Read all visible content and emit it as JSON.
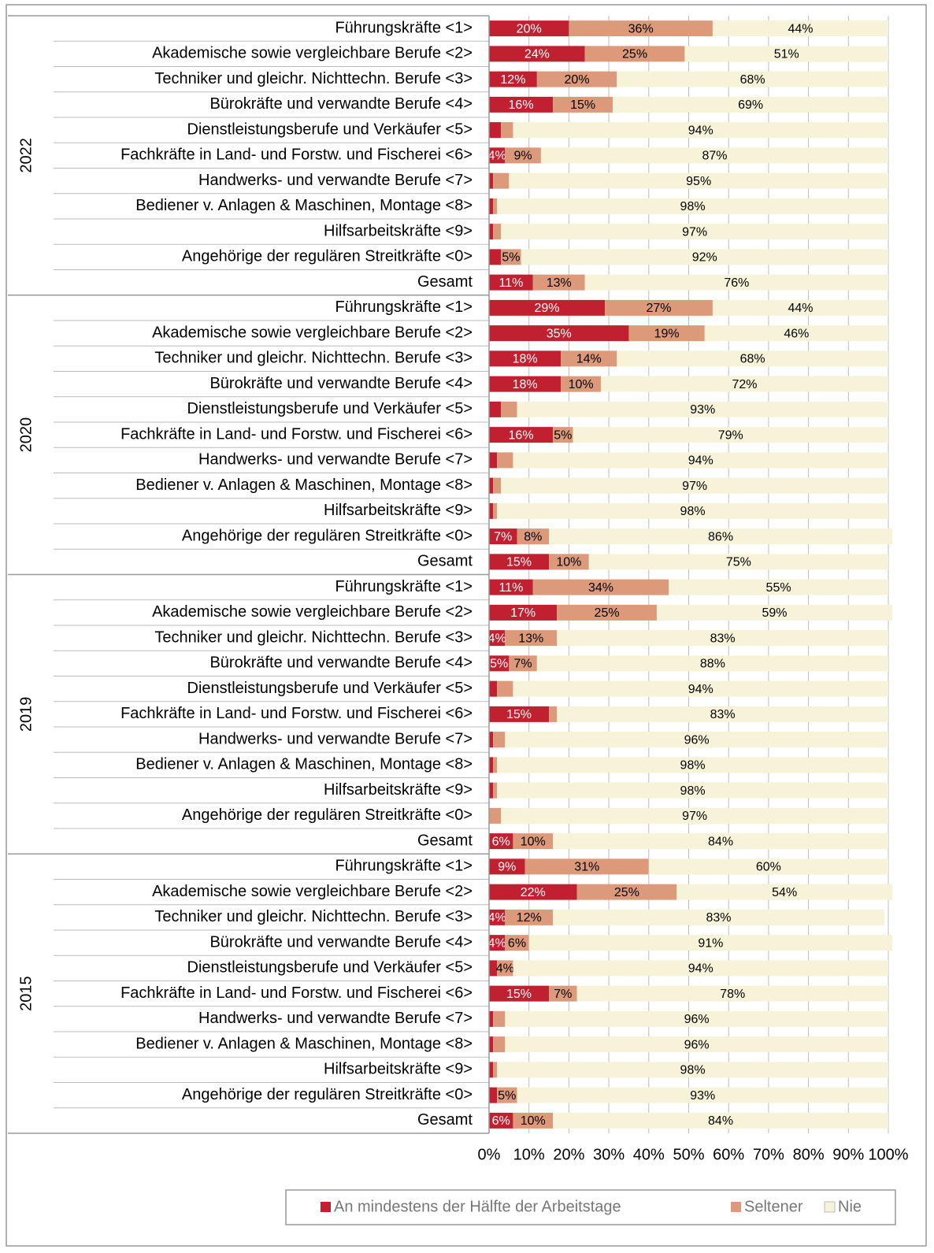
{
  "chart_data": {
    "type": "stacked_barh",
    "series": [
      {
        "name": "An mindestens der Hälfte der Arbeitstage",
        "color": "#c0202f"
      },
      {
        "name": "Seltener",
        "color": "#dc9a7b"
      },
      {
        "name": "Nie",
        "color": "#f6f3d8"
      }
    ],
    "xlim": [
      0,
      100
    ],
    "xticks": [
      {
        "value": 0,
        "label": "0%"
      },
      {
        "value": 10,
        "label": "10%"
      },
      {
        "value": 20,
        "label": "20%"
      },
      {
        "value": 30,
        "label": "30%"
      },
      {
        "value": 40,
        "label": "40%"
      },
      {
        "value": 50,
        "label": "50%"
      },
      {
        "value": 60,
        "label": "60%"
      },
      {
        "value": 70,
        "label": "70%"
      },
      {
        "value": 80,
        "label": "80%"
      },
      {
        "value": 90,
        "label": "90%"
      },
      {
        "value": 100,
        "label": "100%"
      }
    ],
    "grid": true,
    "legend": "bottom",
    "groups": [
      {
        "name": "2022",
        "categories": [
          "Führungskräfte <1>",
          "Akademische sowie vergleichbare Berufe <2>",
          "Techniker und gleichr. Nichttechn. Berufe <3>",
          "Bürokräfte und verwandte Berufe <4>",
          "Dienstleistungsberufe und Verkäufer <5>",
          "Fachkräfte in Land- und Forstw. und Fischerei <6>",
          "Handwerks- und verwandte Berufe <7>",
          "Bediener v. Anlagen & Maschinen,  Montage <8>",
          "Hilfsarbeitskräfte <9>",
          "Angehörige der regulären Streitkräfte <0>",
          "Gesamt"
        ],
        "series": [
          {
            "values": [
              20,
              24,
              12,
              16,
              3,
              4,
              1,
              1,
              1,
              3,
              11
            ],
            "value_labels": [
              "20%",
              "24%",
              "12%",
              "16%",
              null,
              "4%",
              null,
              null,
              null,
              null,
              "11%"
            ]
          },
          {
            "values": [
              36,
              25,
              20,
              15,
              3,
              9,
              4,
              1,
              2,
              5,
              13
            ],
            "value_labels": [
              "36%",
              "25%",
              "20%",
              "15%",
              null,
              "9%",
              null,
              null,
              null,
              "5%",
              "13%"
            ]
          },
          {
            "values": [
              44,
              51,
              68,
              69,
              94,
              87,
              95,
              98,
              97,
              92,
              76
            ],
            "value_labels": [
              "44%",
              "51%",
              "68%",
              "69%",
              "94%",
              "87%",
              "95%",
              "98%",
              "97%",
              "92%",
              "76%"
            ]
          }
        ]
      },
      {
        "name": "2020",
        "categories": [
          "Führungskräfte <1>",
          "Akademische sowie vergleichbare Berufe <2>",
          "Techniker und gleichr. Nichttechn. Berufe <3>",
          "Bürokräfte und verwandte Berufe <4>",
          "Dienstleistungsberufe und Verkäufer <5>",
          "Fachkräfte in Land- und Forstw. und Fischerei <6>",
          "Handwerks- und verwandte Berufe <7>",
          "Bediener v. Anlagen & Maschinen,  Montage <8>",
          "Hilfsarbeitskräfte <9>",
          "Angehörige der regulären Streitkräfte <0>",
          "Gesamt"
        ],
        "series": [
          {
            "values": [
              29,
              35,
              18,
              18,
              3,
              16,
              2,
              1,
              1,
              7,
              15
            ],
            "value_labels": [
              "29%",
              "35%",
              "18%",
              "18%",
              null,
              "16%",
              null,
              null,
              null,
              "7%",
              "15%"
            ]
          },
          {
            "values": [
              27,
              19,
              14,
              10,
              4,
              5,
              4,
              2,
              1,
              8,
              10
            ],
            "value_labels": [
              "27%",
              "19%",
              "14%",
              "10%",
              null,
              "5%",
              null,
              null,
              null,
              "8%",
              "10%"
            ]
          },
          {
            "values": [
              44,
              46,
              68,
              72,
              93,
              79,
              94,
              97,
              98,
              86,
              75
            ],
            "value_labels": [
              "44%",
              "46%",
              "68%",
              "72%",
              "93%",
              "79%",
              "94%",
              "97%",
              "98%",
              "86%",
              "75%"
            ]
          }
        ]
      },
      {
        "name": "2019",
        "categories": [
          "Führungskräfte <1>",
          "Akademische sowie vergleichbare Berufe <2>",
          "Techniker und gleichr. Nichttechn. Berufe <3>",
          "Bürokräfte und verwandte Berufe <4>",
          "Dienstleistungsberufe und Verkäufer <5>",
          "Fachkräfte in Land- und Forstw. und Fischerei <6>",
          "Handwerks- und verwandte Berufe <7>",
          "Bediener v. Anlagen & Maschinen,  Montage <8>",
          "Hilfsarbeitskräfte <9>",
          "Angehörige der regulären Streitkräfte <0>",
          "Gesamt"
        ],
        "series": [
          {
            "values": [
              11,
              17,
              4,
              5,
              2,
              15,
              1,
              1,
              1,
              0,
              6
            ],
            "value_labels": [
              "11%",
              "17%",
              "4%",
              "5%",
              null,
              "15%",
              null,
              null,
              null,
              null,
              "6%"
            ]
          },
          {
            "values": [
              34,
              25,
              13,
              7,
              4,
              2,
              3,
              1,
              1,
              3,
              10
            ],
            "value_labels": [
              "34%",
              "25%",
              "13%",
              "7%",
              null,
              null,
              null,
              null,
              null,
              null,
              "10%"
            ]
          },
          {
            "values": [
              55,
              59,
              83,
              88,
              94,
              83,
              96,
              98,
              98,
              97,
              84
            ],
            "value_labels": [
              "55%",
              "59%",
              "83%",
              "88%",
              "94%",
              "83%",
              "96%",
              "98%",
              "98%",
              "97%",
              "84%"
            ]
          }
        ]
      },
      {
        "name": "2015",
        "categories": [
          "Führungskräfte <1>",
          "Akademische sowie vergleichbare Berufe <2>",
          "Techniker und gleichr. Nichttechn. Berufe <3>",
          "Bürokräfte und verwandte Berufe <4>",
          "Dienstleistungsberufe und Verkäufer <5>",
          "Fachkräfte in Land- und Forstw. und Fischerei <6>",
          "Handwerks- und verwandte Berufe <7>",
          "Bediener v. Anlagen & Maschinen,  Montage <8>",
          "Hilfsarbeitskräfte <9>",
          "Angehörige der regulären Streitkräfte <0>",
          "Gesamt"
        ],
        "series": [
          {
            "values": [
              9,
              22,
              4,
              4,
              2,
              15,
              1,
              1,
              1,
              2,
              6
            ],
            "value_labels": [
              "9%",
              "22%",
              "4%",
              "4%",
              null,
              "15%",
              null,
              null,
              null,
              null,
              "6%"
            ]
          },
          {
            "values": [
              31,
              25,
              12,
              6,
              4,
              7,
              3,
              3,
              1,
              5,
              10
            ],
            "value_labels": [
              "31%",
              "25%",
              "12%",
              "6%",
              "4%",
              "7%",
              null,
              null,
              null,
              "5%",
              "10%"
            ]
          },
          {
            "values": [
              60,
              54,
              83,
              91,
              94,
              78,
              96,
              96,
              98,
              93,
              84
            ],
            "value_labels": [
              "60%",
              "54%",
              "83%",
              "91%",
              "94%",
              "78%",
              "96%",
              "96%",
              "98%",
              "93%",
              "84%"
            ]
          }
        ]
      }
    ]
  }
}
